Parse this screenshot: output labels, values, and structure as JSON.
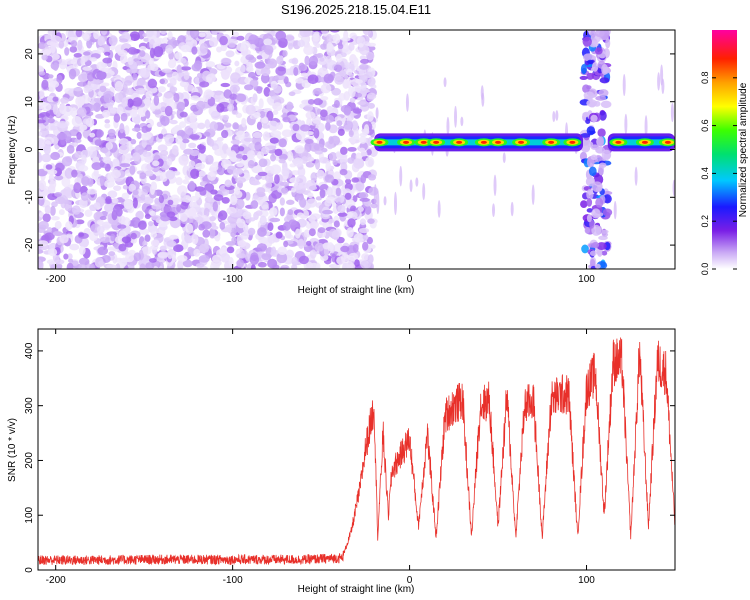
{
  "title": "S196.2025.218.15.04.E11",
  "chart_data": [
    {
      "type": "heatmap",
      "title": "S196.2025.218.15.04.E11",
      "xlabel": "Height of straight line (km)",
      "ylabel": "Frequency (Hz)",
      "xlim": [
        -210,
        150
      ],
      "ylim": [
        -25,
        25
      ],
      "xticks": [
        -200,
        -100,
        0,
        100
      ],
      "yticks": [
        -20,
        -10,
        0,
        10,
        20
      ],
      "colorbar": {
        "label": "Normalized spectral amplitude",
        "range": [
          0.0,
          1.0
        ],
        "ticks": [
          0.0,
          0.2,
          0.4,
          0.6,
          0.8
        ],
        "tick_labels": [
          "0.0",
          "0.2",
          "0.4",
          "0.6",
          "0.8"
        ],
        "colormap": "rainbow (white → violet → blue → cyan → green → yellow → orange → red → magenta)"
      },
      "regions": [
        {
          "x_range": [
            -210,
            -20
          ],
          "description": "broadband noise",
          "amplitude_range": [
            0.02,
            0.12
          ]
        },
        {
          "x_range": [
            -20,
            98
          ],
          "description": "narrow band near 1-2 Hz",
          "center_hz": 1.5,
          "peak_amplitude": 0.85
        },
        {
          "x_range": [
            98,
            112
          ],
          "description": "broadband burst",
          "amplitude_range": [
            0.05,
            0.35
          ]
        },
        {
          "x_range": [
            112,
            150
          ],
          "description": "narrow band near 1-2 Hz",
          "center_hz": 1.5,
          "peak_amplitude": 0.85
        }
      ],
      "band_peaks_x": [
        -17,
        -2,
        8,
        15,
        28,
        42,
        50,
        63,
        80,
        92,
        118,
        133,
        146
      ]
    },
    {
      "type": "line",
      "xlabel": "Height of straight line (km)",
      "ylabel": "SNR (10 * v/v)",
      "xlim": [
        -210,
        150
      ],
      "ylim": [
        0,
        440
      ],
      "xticks": [
        -200,
        -100,
        0,
        100
      ],
      "yticks": [
        0,
        100,
        200,
        300,
        400
      ],
      "series": [
        {
          "color": "#e8302a",
          "x": [
            -210,
            -180,
            -150,
            -120,
            -90,
            -60,
            -38,
            -33,
            -28,
            -25,
            -20,
            -18,
            -15,
            -12,
            -10,
            -5,
            0,
            5,
            10,
            15,
            20,
            25,
            30,
            35,
            40,
            45,
            50,
            55,
            60,
            65,
            70,
            75,
            80,
            85,
            90,
            95,
            100,
            105,
            110,
            115,
            120,
            125,
            130,
            135,
            140,
            145,
            150
          ],
          "y": [
            18,
            18,
            19,
            19,
            19,
            19,
            22,
            70,
            150,
            220,
            300,
            60,
            250,
            100,
            180,
            210,
            240,
            80,
            250,
            60,
            280,
            300,
            310,
            60,
            300,
            310,
            80,
            320,
            60,
            300,
            310,
            60,
            310,
            320,
            320,
            60,
            330,
            360,
            100,
            380,
            380,
            60,
            400,
            80,
            380,
            360,
            80
          ]
        }
      ]
    }
  ]
}
